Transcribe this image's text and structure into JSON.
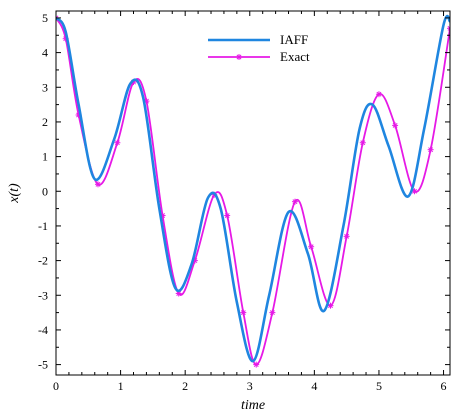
{
  "chart_data": {
    "type": "line",
    "xlabel": "time",
    "ylabel": "x(t)",
    "xlim": [
      0,
      6.1
    ],
    "ylim": [
      -5.3,
      5.2
    ],
    "xticks": [
      0,
      1,
      2,
      3,
      4,
      5,
      6
    ],
    "yticks": [
      5,
      4,
      3,
      2,
      1,
      0,
      -1,
      -2,
      -3,
      -4,
      -5
    ],
    "xtick_labels": [
      "0",
      "1",
      "2",
      "3",
      "4",
      "5",
      "6"
    ],
    "ytick_labels": [
      "5",
      "4",
      "3",
      "2",
      "1",
      "0",
      "-1",
      "-2",
      "-3",
      "-4",
      "-5"
    ],
    "grid": false,
    "legend_position": "top-center",
    "series": [
      {
        "name": "IAFF",
        "color": "#1f86e0",
        "marker": "none",
        "x": [
          0,
          0.15,
          0.35,
          0.6,
          0.9,
          1.15,
          1.35,
          1.6,
          1.85,
          2.1,
          2.35,
          2.55,
          2.8,
          3.05,
          3.3,
          3.6,
          3.9,
          4.15,
          4.45,
          4.7,
          4.9,
          5.15,
          5.45,
          5.7,
          6.0,
          6.1
        ],
        "y": [
          5.0,
          4.6,
          2.5,
          0.35,
          1.5,
          3.1,
          2.7,
          -0.5,
          -2.8,
          -2.1,
          -0.2,
          -0.5,
          -3.2,
          -4.9,
          -3.0,
          -0.6,
          -1.8,
          -3.45,
          -1.0,
          1.8,
          2.5,
          1.3,
          -0.15,
          1.8,
          4.8,
          4.9
        ]
      },
      {
        "name": "Exact",
        "color": "#e619e6",
        "marker": "asterisk",
        "x": [
          0,
          0.15,
          0.35,
          0.65,
          0.95,
          1.2,
          1.4,
          1.65,
          1.9,
          2.15,
          2.45,
          2.65,
          2.9,
          3.1,
          3.35,
          3.7,
          3.95,
          4.25,
          4.5,
          4.75,
          5.0,
          5.25,
          5.55,
          5.8,
          6.1
        ],
        "y": [
          5.0,
          4.4,
          2.2,
          0.2,
          1.4,
          3.15,
          2.6,
          -0.7,
          -2.95,
          -2.0,
          -0.1,
          -0.7,
          -3.5,
          -5.0,
          -3.5,
          -0.3,
          -1.6,
          -3.3,
          -1.3,
          1.4,
          2.8,
          1.9,
          0.0,
          1.2,
          4.7
        ]
      }
    ]
  }
}
